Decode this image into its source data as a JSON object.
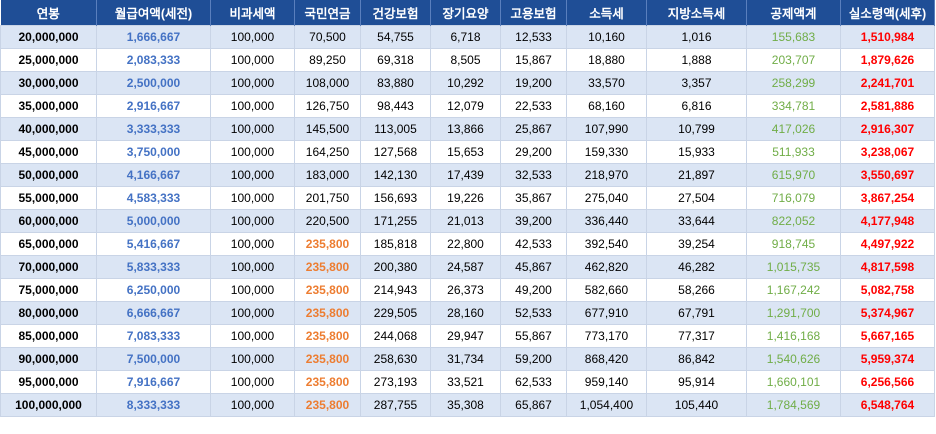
{
  "headers": [
    "연봉",
    "월급여액(세전)",
    "비과세액",
    "국민연금",
    "건강보험",
    "장기요양",
    "고용보험",
    "소득세",
    "지방소득세",
    "공제액계",
    "실소령액(세후)"
  ],
  "colors": {
    "header_bg": "#1f4e96",
    "row_alt_bg": "#dbe5f4",
    "monthly": "#4472c4",
    "pension_high": "#ed7d31",
    "deduction_total": "#70ad47",
    "net": "#ff0000"
  },
  "rows": [
    [
      "20,000,000",
      "1,666,667",
      "100,000",
      "70,500",
      "54,755",
      "6,718",
      "12,533",
      "10,160",
      "1,016",
      "155,683",
      "1,510,984"
    ],
    [
      "25,000,000",
      "2,083,333",
      "100,000",
      "89,250",
      "69,318",
      "8,505",
      "15,867",
      "18,880",
      "1,888",
      "203,707",
      "1,879,626"
    ],
    [
      "30,000,000",
      "2,500,000",
      "100,000",
      "108,000",
      "83,880",
      "10,292",
      "19,200",
      "33,570",
      "3,357",
      "258,299",
      "2,241,701"
    ],
    [
      "35,000,000",
      "2,916,667",
      "100,000",
      "126,750",
      "98,443",
      "12,079",
      "22,533",
      "68,160",
      "6,816",
      "334,781",
      "2,581,886"
    ],
    [
      "40,000,000",
      "3,333,333",
      "100,000",
      "145,500",
      "113,005",
      "13,866",
      "25,867",
      "107,990",
      "10,799",
      "417,026",
      "2,916,307"
    ],
    [
      "45,000,000",
      "3,750,000",
      "100,000",
      "164,250",
      "127,568",
      "15,653",
      "29,200",
      "159,330",
      "15,933",
      "511,933",
      "3,238,067"
    ],
    [
      "50,000,000",
      "4,166,667",
      "100,000",
      "183,000",
      "142,130",
      "17,439",
      "32,533",
      "218,970",
      "21,897",
      "615,970",
      "3,550,697"
    ],
    [
      "55,000,000",
      "4,583,333",
      "100,000",
      "201,750",
      "156,693",
      "19,226",
      "35,867",
      "275,040",
      "27,504",
      "716,079",
      "3,867,254"
    ],
    [
      "60,000,000",
      "5,000,000",
      "100,000",
      "220,500",
      "171,255",
      "21,013",
      "39,200",
      "336,440",
      "33,644",
      "822,052",
      "4,177,948"
    ],
    [
      "65,000,000",
      "5,416,667",
      "100,000",
      "235,800",
      "185,818",
      "22,800",
      "42,533",
      "392,540",
      "39,254",
      "918,745",
      "4,497,922"
    ],
    [
      "70,000,000",
      "5,833,333",
      "100,000",
      "235,800",
      "200,380",
      "24,587",
      "45,867",
      "462,820",
      "46,282",
      "1,015,735",
      "4,817,598"
    ],
    [
      "75,000,000",
      "6,250,000",
      "100,000",
      "235,800",
      "214,943",
      "26,373",
      "49,200",
      "582,660",
      "58,266",
      "1,167,242",
      "5,082,758"
    ],
    [
      "80,000,000",
      "6,666,667",
      "100,000",
      "235,800",
      "229,505",
      "28,160",
      "52,533",
      "677,910",
      "67,791",
      "1,291,700",
      "5,374,967"
    ],
    [
      "85,000,000",
      "7,083,333",
      "100,000",
      "235,800",
      "244,068",
      "29,947",
      "55,867",
      "773,170",
      "77,317",
      "1,416,168",
      "5,667,165"
    ],
    [
      "90,000,000",
      "7,500,000",
      "100,000",
      "235,800",
      "258,630",
      "31,734",
      "59,200",
      "868,420",
      "86,842",
      "1,540,626",
      "5,959,374"
    ],
    [
      "95,000,000",
      "7,916,667",
      "100,000",
      "235,800",
      "273,193",
      "33,521",
      "62,533",
      "959,140",
      "95,914",
      "1,660,101",
      "6,256,566"
    ],
    [
      "100,000,000",
      "8,333,333",
      "100,000",
      "235,800",
      "287,755",
      "35,308",
      "65,867",
      "1,054,400",
      "105,440",
      "1,784,569",
      "6,548,764"
    ]
  ]
}
